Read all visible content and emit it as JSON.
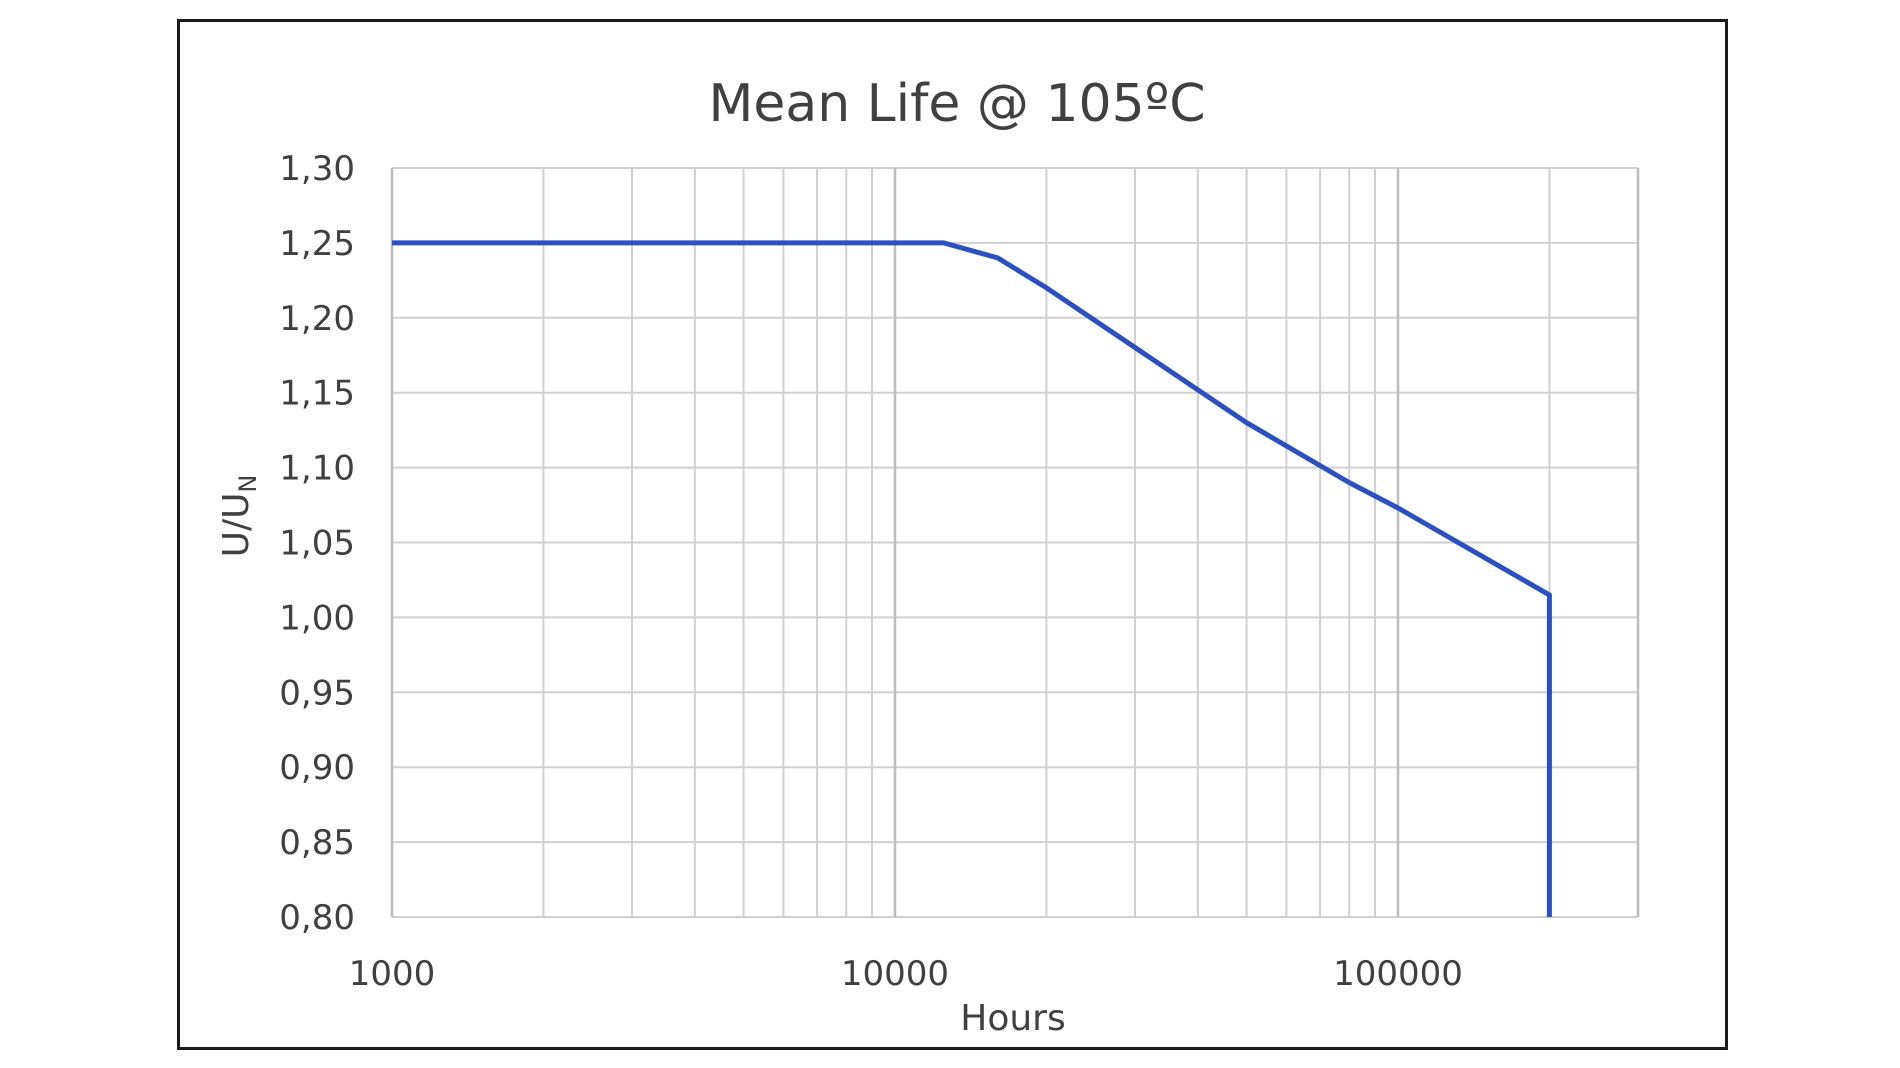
{
  "chart_data": {
    "type": "line",
    "title": "Mean Life @ 105ºC",
    "xlabel": "Hours",
    "ylabel": {
      "main": "U/U",
      "subscript": "N"
    },
    "x_scale": "log",
    "xlim": [
      1000,
      300000
    ],
    "ylim": [
      0.8,
      1.3
    ],
    "x_ticks": [
      {
        "value": 1000,
        "label": "1000"
      },
      {
        "value": 10000,
        "label": "10000"
      },
      {
        "value": 100000,
        "label": "100000"
      }
    ],
    "y_ticks": [
      {
        "value": 1.3,
        "label": "1,30"
      },
      {
        "value": 1.25,
        "label": "1,25"
      },
      {
        "value": 1.2,
        "label": "1,20"
      },
      {
        "value": 1.15,
        "label": "1,15"
      },
      {
        "value": 1.1,
        "label": "1,10"
      },
      {
        "value": 1.05,
        "label": "1,05"
      },
      {
        "value": 1.0,
        "label": "1,00"
      },
      {
        "value": 0.95,
        "label": "0,95"
      },
      {
        "value": 0.9,
        "label": "0,90"
      },
      {
        "value": 0.85,
        "label": "0,85"
      },
      {
        "value": 0.8,
        "label": "0,80"
      }
    ],
    "grid": true,
    "series": [
      {
        "name": "Mean Life",
        "color": "#2B50C0",
        "points": [
          [
            1000,
            1.25
          ],
          [
            12500,
            1.25
          ],
          [
            16000,
            1.24
          ],
          [
            20000,
            1.22
          ],
          [
            50000,
            1.13
          ],
          [
            80000,
            1.09
          ],
          [
            100000,
            1.073
          ],
          [
            200000,
            1.015
          ],
          [
            200000,
            0.8
          ]
        ]
      }
    ],
    "colors": {
      "grid": "#D0D0D0",
      "text": "#404040"
    }
  }
}
